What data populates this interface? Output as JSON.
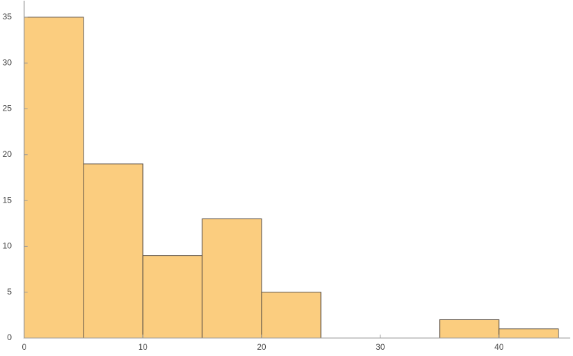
{
  "chart_data": {
    "type": "histogram",
    "bins": [
      0,
      5,
      10,
      15,
      20,
      25,
      30,
      35,
      40,
      45
    ],
    "counts": [
      35,
      19,
      9,
      13,
      5,
      0,
      0,
      2,
      1
    ],
    "color": "#fbcd7f",
    "edge_color": "#5a5046",
    "xlim": [
      0,
      46
    ],
    "ylim": [
      0,
      36.8
    ],
    "xticks": [
      0,
      10,
      20,
      30,
      40
    ],
    "yticks": [
      0,
      5,
      10,
      15,
      20,
      25,
      30,
      35
    ]
  }
}
